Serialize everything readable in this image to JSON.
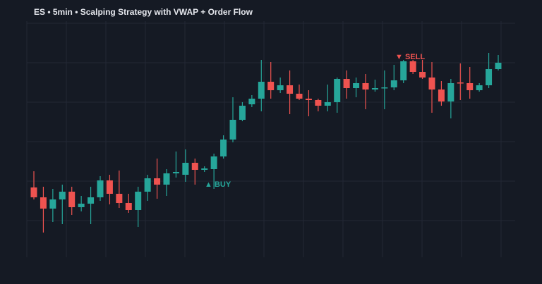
{
  "chart_data": {
    "type": "candlestick",
    "title": "ES • 5min • Scalping Strategy with VWAP + Order Flow",
    "up_color": "#26a69a",
    "down_color": "#ef5350",
    "grid": true,
    "ylim": [
      35,
      370
    ],
    "open": [
      134,
      120,
      104,
      117,
      128,
      106,
      111,
      120,
      144,
      125,
      112,
      102,
      128,
      147,
      138,
      154,
      152,
      169,
      159,
      160,
      178,
      202,
      230,
      252,
      260,
      284,
      272,
      279,
      267,
      260,
      258,
      250,
      255,
      288,
      275,
      282,
      273,
      275,
      276,
      286,
      313,
      298,
      290,
      273,
      256,
      283,
      282,
      272,
      279,
      302
    ],
    "high": [
      157,
      135,
      132,
      138,
      135,
      122,
      135,
      150,
      152,
      158,
      125,
      135,
      152,
      175,
      160,
      185,
      188,
      175,
      164,
      182,
      208,
      262,
      255,
      265,
      315,
      312,
      290,
      300,
      280,
      272,
      260,
      280,
      290,
      300,
      290,
      295,
      287,
      300,
      308,
      315,
      315,
      315,
      312,
      285,
      288,
      310,
      305,
      282,
      325,
      322
    ],
    "low": [
      117,
      70,
      85,
      82,
      95,
      100,
      82,
      115,
      110,
      105,
      98,
      78,
      115,
      118,
      122,
      148,
      142,
      138,
      156,
      132,
      175,
      198,
      228,
      248,
      242,
      260,
      268,
      238,
      258,
      235,
      242,
      242,
      240,
      260,
      262,
      245,
      270,
      245,
      272,
      282,
      295,
      288,
      240,
      250,
      232,
      258,
      260,
      270,
      275,
      300
    ],
    "close": [
      120,
      104,
      117,
      128,
      106,
      111,
      120,
      144,
      125,
      112,
      102,
      128,
      147,
      138,
      154,
      156,
      169,
      159,
      161,
      178,
      202,
      230,
      250,
      260,
      284,
      272,
      279,
      267,
      260,
      258,
      250,
      255,
      288,
      275,
      282,
      273,
      275,
      276,
      286,
      313,
      298,
      290,
      273,
      256,
      282,
      282,
      272,
      279,
      302,
      311
    ],
    "annotations": [
      {
        "text": "▲ BUY",
        "color": "#26a69a"
      },
      {
        "text": "▼ SELL",
        "color": "#ef5350"
      }
    ]
  }
}
